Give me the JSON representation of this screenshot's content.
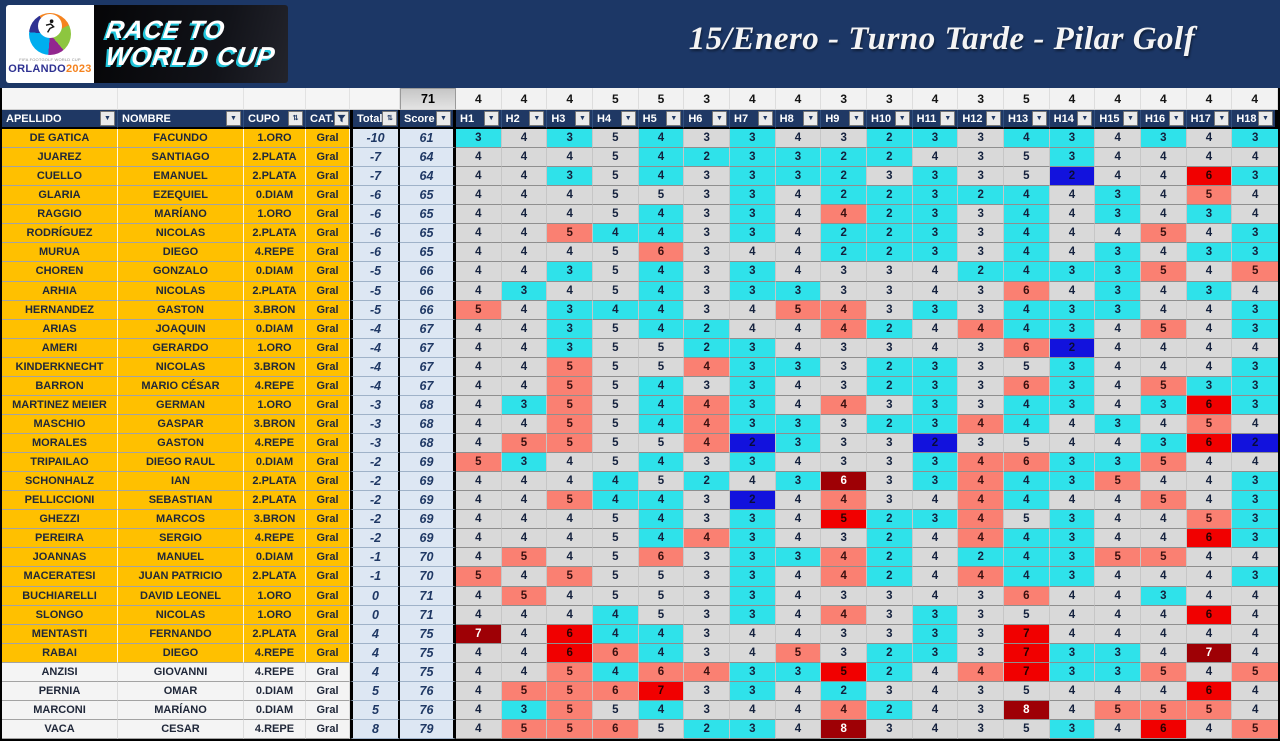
{
  "header": {
    "title": "15/Enero - Turno Tarde - Pilar Golf",
    "logo": {
      "small_text": "FIFA FOOTGOLF WORLD CUP",
      "city": "ORLANDO",
      "year": "2023",
      "banner_line1": "RACE TO",
      "banner_line2": "WORLD CUP"
    }
  },
  "colors": {
    "band_navy": "#1c3766",
    "header_navy": "#1f3864",
    "gold": "#ffc000",
    "score_panel": "#dde7f3",
    "par_cell": "#d9d9d9",
    "birdie": "#2fe2ea",
    "bogey": "#fa8072",
    "double_bogey": "#f10000",
    "triple_plus": "#9e0005",
    "eagle": "#1212dd"
  },
  "table": {
    "course_par_total": 71,
    "hole_prefix": "H",
    "pars": [
      4,
      4,
      4,
      5,
      5,
      3,
      4,
      4,
      3,
      3,
      4,
      3,
      5,
      4,
      4,
      4,
      4,
      4
    ],
    "columns": [
      {
        "label": "APELLIDO",
        "icon": "arrow"
      },
      {
        "label": "NOMBRE",
        "icon": "arrow"
      },
      {
        "label": "CUPO",
        "icon": "sort"
      },
      {
        "label": "CAT.",
        "icon": "funnel"
      },
      {
        "label": "Total",
        "icon": "sort"
      },
      {
        "label": "Score",
        "icon": "arrow"
      }
    ],
    "players": [
      {
        "apellido": "DE GATICA",
        "nombre": "FACUNDO",
        "cupo": "1.ORO",
        "cat": "Gral",
        "total": "-10",
        "score": 61,
        "group": "gold",
        "holes": [
          3,
          4,
          3,
          5,
          4,
          3,
          3,
          4,
          3,
          2,
          3,
          3,
          4,
          3,
          4,
          3,
          4,
          3
        ]
      },
      {
        "apellido": "JUAREZ",
        "nombre": "SANTIAGO",
        "cupo": "2.PLATA",
        "cat": "Gral",
        "total": "-7",
        "score": 64,
        "group": "gold",
        "holes": [
          4,
          4,
          4,
          5,
          4,
          2,
          3,
          3,
          2,
          2,
          4,
          3,
          5,
          3,
          4,
          4,
          4,
          4
        ]
      },
      {
        "apellido": "CUELLO",
        "nombre": "EMANUEL",
        "cupo": "2.PLATA",
        "cat": "Gral",
        "total": "-7",
        "score": 64,
        "group": "gold",
        "holes": [
          4,
          4,
          3,
          5,
          4,
          3,
          3,
          3,
          2,
          3,
          3,
          3,
          5,
          2,
          4,
          4,
          6,
          3
        ]
      },
      {
        "apellido": "GLARIA",
        "nombre": "EZEQUIEL",
        "cupo": "0.DIAM",
        "cat": "Gral",
        "total": "-6",
        "score": 65,
        "group": "gold",
        "holes": [
          4,
          4,
          4,
          5,
          5,
          3,
          3,
          4,
          2,
          2,
          3,
          2,
          4,
          4,
          3,
          4,
          5,
          4
        ]
      },
      {
        "apellido": "RAGGIO",
        "nombre": "MARÍANO",
        "cupo": "1.ORO",
        "cat": "Gral",
        "total": "-6",
        "score": 65,
        "group": "gold",
        "holes": [
          4,
          4,
          4,
          5,
          4,
          3,
          3,
          4,
          4,
          2,
          3,
          3,
          4,
          4,
          3,
          4,
          3,
          4
        ]
      },
      {
        "apellido": "RODRÍGUEZ",
        "nombre": "NICOLAS",
        "cupo": "2.PLATA",
        "cat": "Gral",
        "total": "-6",
        "score": 65,
        "group": "gold",
        "holes": [
          4,
          4,
          5,
          4,
          4,
          3,
          3,
          4,
          2,
          2,
          3,
          3,
          4,
          4,
          4,
          5,
          4,
          3
        ]
      },
      {
        "apellido": "MURUA",
        "nombre": "DIEGO",
        "cupo": "4.REPE",
        "cat": "Gral",
        "total": "-6",
        "score": 65,
        "group": "gold",
        "holes": [
          4,
          4,
          4,
          5,
          6,
          3,
          4,
          4,
          2,
          2,
          3,
          3,
          4,
          4,
          3,
          4,
          3,
          3
        ]
      },
      {
        "apellido": "CHOREN",
        "nombre": "GONZALO",
        "cupo": "0.DIAM",
        "cat": "Gral",
        "total": "-5",
        "score": 66,
        "group": "gold",
        "holes": [
          4,
          4,
          3,
          5,
          4,
          3,
          3,
          4,
          3,
          3,
          4,
          2,
          4,
          3,
          3,
          5,
          4,
          5
        ]
      },
      {
        "apellido": "ARHIA",
        "nombre": "NICOLAS",
        "cupo": "2.PLATA",
        "cat": "Gral",
        "total": "-5",
        "score": 66,
        "group": "gold",
        "holes": [
          4,
          3,
          4,
          5,
          4,
          3,
          3,
          3,
          3,
          3,
          4,
          3,
          6,
          4,
          3,
          4,
          3,
          4
        ]
      },
      {
        "apellido": "HERNANDEZ",
        "nombre": "GASTON",
        "cupo": "3.BRON",
        "cat": "Gral",
        "total": "-5",
        "score": 66,
        "group": "gold",
        "holes": [
          5,
          4,
          3,
          4,
          4,
          3,
          4,
          5,
          4,
          3,
          3,
          3,
          4,
          3,
          3,
          4,
          4,
          3
        ]
      },
      {
        "apellido": "ARIAS",
        "nombre": "JOAQUIN",
        "cupo": "0.DIAM",
        "cat": "Gral",
        "total": "-4",
        "score": 67,
        "group": "gold",
        "holes": [
          4,
          4,
          3,
          5,
          4,
          2,
          4,
          4,
          4,
          2,
          4,
          4,
          4,
          3,
          4,
          5,
          4,
          3
        ]
      },
      {
        "apellido": "AMERI",
        "nombre": "GERARDO",
        "cupo": "1.ORO",
        "cat": "Gral",
        "total": "-4",
        "score": 67,
        "group": "gold",
        "holes": [
          4,
          4,
          3,
          5,
          5,
          2,
          3,
          4,
          3,
          3,
          4,
          3,
          6,
          2,
          4,
          4,
          4,
          4
        ]
      },
      {
        "apellido": "KINDERKNECHT",
        "nombre": "NICOLAS",
        "cupo": "3.BRON",
        "cat": "Gral",
        "total": "-4",
        "score": 67,
        "group": "gold",
        "holes": [
          4,
          4,
          5,
          5,
          5,
          4,
          3,
          3,
          3,
          2,
          3,
          3,
          5,
          3,
          4,
          4,
          4,
          3
        ]
      },
      {
        "apellido": "BARRON",
        "nombre": "MARIO CÉSAR",
        "cupo": "4.REPE",
        "cat": "Gral",
        "total": "-4",
        "score": 67,
        "group": "gold",
        "holes": [
          4,
          4,
          5,
          5,
          4,
          3,
          3,
          4,
          3,
          2,
          3,
          3,
          6,
          3,
          4,
          5,
          3,
          3
        ]
      },
      {
        "apellido": "MARTINEZ MEIER",
        "nombre": "GERMAN",
        "cupo": "1.ORO",
        "cat": "Gral",
        "total": "-3",
        "score": 68,
        "group": "gold",
        "holes": [
          4,
          3,
          5,
          5,
          4,
          4,
          3,
          4,
          4,
          3,
          3,
          3,
          4,
          3,
          4,
          3,
          6,
          3
        ]
      },
      {
        "apellido": "MASCHIO",
        "nombre": "GASPAR",
        "cupo": "3.BRON",
        "cat": "Gral",
        "total": "-3",
        "score": 68,
        "group": "gold",
        "holes": [
          4,
          4,
          5,
          5,
          4,
          4,
          3,
          3,
          3,
          2,
          3,
          4,
          4,
          4,
          3,
          4,
          5,
          4
        ]
      },
      {
        "apellido": "MORALES",
        "nombre": "GASTON",
        "cupo": "4.REPE",
        "cat": "Gral",
        "total": "-3",
        "score": 68,
        "group": "gold",
        "holes": [
          4,
          5,
          5,
          5,
          5,
          4,
          2,
          3,
          3,
          3,
          2,
          3,
          5,
          4,
          4,
          3,
          6,
          2
        ]
      },
      {
        "apellido": "TRIPAILAO",
        "nombre": "DIEGO RAUL",
        "cupo": "0.DIAM",
        "cat": "Gral",
        "total": "-2",
        "score": 69,
        "group": "gold",
        "holes": [
          5,
          3,
          4,
          5,
          4,
          3,
          3,
          4,
          3,
          3,
          3,
          4,
          6,
          3,
          3,
          5,
          4,
          4
        ]
      },
      {
        "apellido": "SCHONHALZ",
        "nombre": "IAN",
        "cupo": "2.PLATA",
        "cat": "Gral",
        "total": "-2",
        "score": 69,
        "group": "gold",
        "holes": [
          4,
          4,
          4,
          4,
          5,
          2,
          4,
          3,
          6,
          3,
          3,
          4,
          4,
          3,
          5,
          4,
          4,
          3
        ]
      },
      {
        "apellido": "PELLICCIONI",
        "nombre": "SEBASTIAN",
        "cupo": "2.PLATA",
        "cat": "Gral",
        "total": "-2",
        "score": 69,
        "group": "gold",
        "holes": [
          4,
          4,
          5,
          4,
          4,
          3,
          2,
          4,
          4,
          3,
          4,
          4,
          4,
          4,
          4,
          5,
          4,
          3
        ]
      },
      {
        "apellido": "GHEZZI",
        "nombre": "MARCOS",
        "cupo": "3.BRON",
        "cat": "Gral",
        "total": "-2",
        "score": 69,
        "group": "gold",
        "holes": [
          4,
          4,
          4,
          5,
          4,
          3,
          3,
          4,
          5,
          2,
          3,
          4,
          5,
          3,
          4,
          4,
          5,
          3
        ]
      },
      {
        "apellido": "PEREIRA",
        "nombre": "SERGIO",
        "cupo": "4.REPE",
        "cat": "Gral",
        "total": "-2",
        "score": 69,
        "group": "gold",
        "holes": [
          4,
          4,
          4,
          5,
          4,
          4,
          3,
          4,
          3,
          2,
          4,
          4,
          4,
          3,
          4,
          4,
          6,
          3
        ]
      },
      {
        "apellido": "JOANNAS",
        "nombre": "MANUEL",
        "cupo": "0.DIAM",
        "cat": "Gral",
        "total": "-1",
        "score": 70,
        "group": "gold",
        "holes": [
          4,
          5,
          4,
          5,
          6,
          3,
          3,
          3,
          4,
          2,
          4,
          2,
          4,
          3,
          5,
          5,
          4,
          4
        ]
      },
      {
        "apellido": "MACERATESI",
        "nombre": "JUAN PATRICIO",
        "cupo": "2.PLATA",
        "cat": "Gral",
        "total": "-1",
        "score": 70,
        "group": "gold",
        "holes": [
          5,
          4,
          5,
          5,
          5,
          3,
          3,
          4,
          4,
          2,
          4,
          4,
          4,
          3,
          4,
          4,
          4,
          3
        ]
      },
      {
        "apellido": "BUCHIARELLI",
        "nombre": "DAVID LEONEL",
        "cupo": "1.ORO",
        "cat": "Gral",
        "total": "0",
        "score": 71,
        "group": "gold",
        "holes": [
          4,
          5,
          4,
          5,
          5,
          3,
          3,
          4,
          3,
          3,
          4,
          3,
          6,
          4,
          4,
          3,
          4,
          4
        ]
      },
      {
        "apellido": "SLONGO",
        "nombre": "NICOLAS",
        "cupo": "1.ORO",
        "cat": "Gral",
        "total": "0",
        "score": 71,
        "group": "gold",
        "holes": [
          4,
          4,
          4,
          4,
          5,
          3,
          3,
          4,
          4,
          3,
          3,
          3,
          5,
          4,
          4,
          4,
          6,
          4
        ]
      },
      {
        "apellido": "MENTASTI",
        "nombre": "FERNANDO",
        "cupo": "2.PLATA",
        "cat": "Gral",
        "total": "4",
        "score": 75,
        "group": "gold",
        "holes": [
          7,
          4,
          6,
          4,
          4,
          3,
          4,
          4,
          3,
          3,
          3,
          3,
          7,
          4,
          4,
          4,
          4,
          4
        ]
      },
      {
        "apellido": "RABAI",
        "nombre": "DIEGO",
        "cupo": "4.REPE",
        "cat": "Gral",
        "total": "4",
        "score": 75,
        "group": "gold",
        "holes": [
          4,
          4,
          6,
          6,
          4,
          3,
          4,
          5,
          3,
          2,
          3,
          3,
          7,
          3,
          3,
          4,
          7,
          4
        ]
      },
      {
        "apellido": "ANZISI",
        "nombre": "GIOVANNI",
        "cupo": "4.REPE",
        "cat": "Gral",
        "total": "4",
        "score": 75,
        "group": "white",
        "holes": [
          4,
          4,
          5,
          4,
          6,
          4,
          3,
          3,
          5,
          2,
          4,
          4,
          7,
          3,
          3,
          5,
          4,
          5
        ]
      },
      {
        "apellido": "PERNIA",
        "nombre": "OMAR",
        "cupo": "0.DIAM",
        "cat": "Gral",
        "total": "5",
        "score": 76,
        "group": "white",
        "holes": [
          4,
          5,
          5,
          6,
          7,
          3,
          3,
          4,
          2,
          3,
          4,
          3,
          5,
          4,
          4,
          4,
          6,
          4
        ]
      },
      {
        "apellido": "MARCONI",
        "nombre": "MARÍANO",
        "cupo": "0.DIAM",
        "cat": "Gral",
        "total": "5",
        "score": 76,
        "group": "white",
        "holes": [
          4,
          3,
          5,
          5,
          4,
          3,
          4,
          4,
          4,
          2,
          4,
          3,
          8,
          4,
          5,
          5,
          5,
          4
        ]
      },
      {
        "apellido": "VACA",
        "nombre": "CESAR",
        "cupo": "4.REPE",
        "cat": "Gral",
        "total": "8",
        "score": 79,
        "group": "white",
        "holes": [
          4,
          5,
          5,
          6,
          5,
          2,
          3,
          4,
          8,
          3,
          4,
          3,
          5,
          3,
          4,
          6,
          4,
          5
        ]
      }
    ]
  }
}
